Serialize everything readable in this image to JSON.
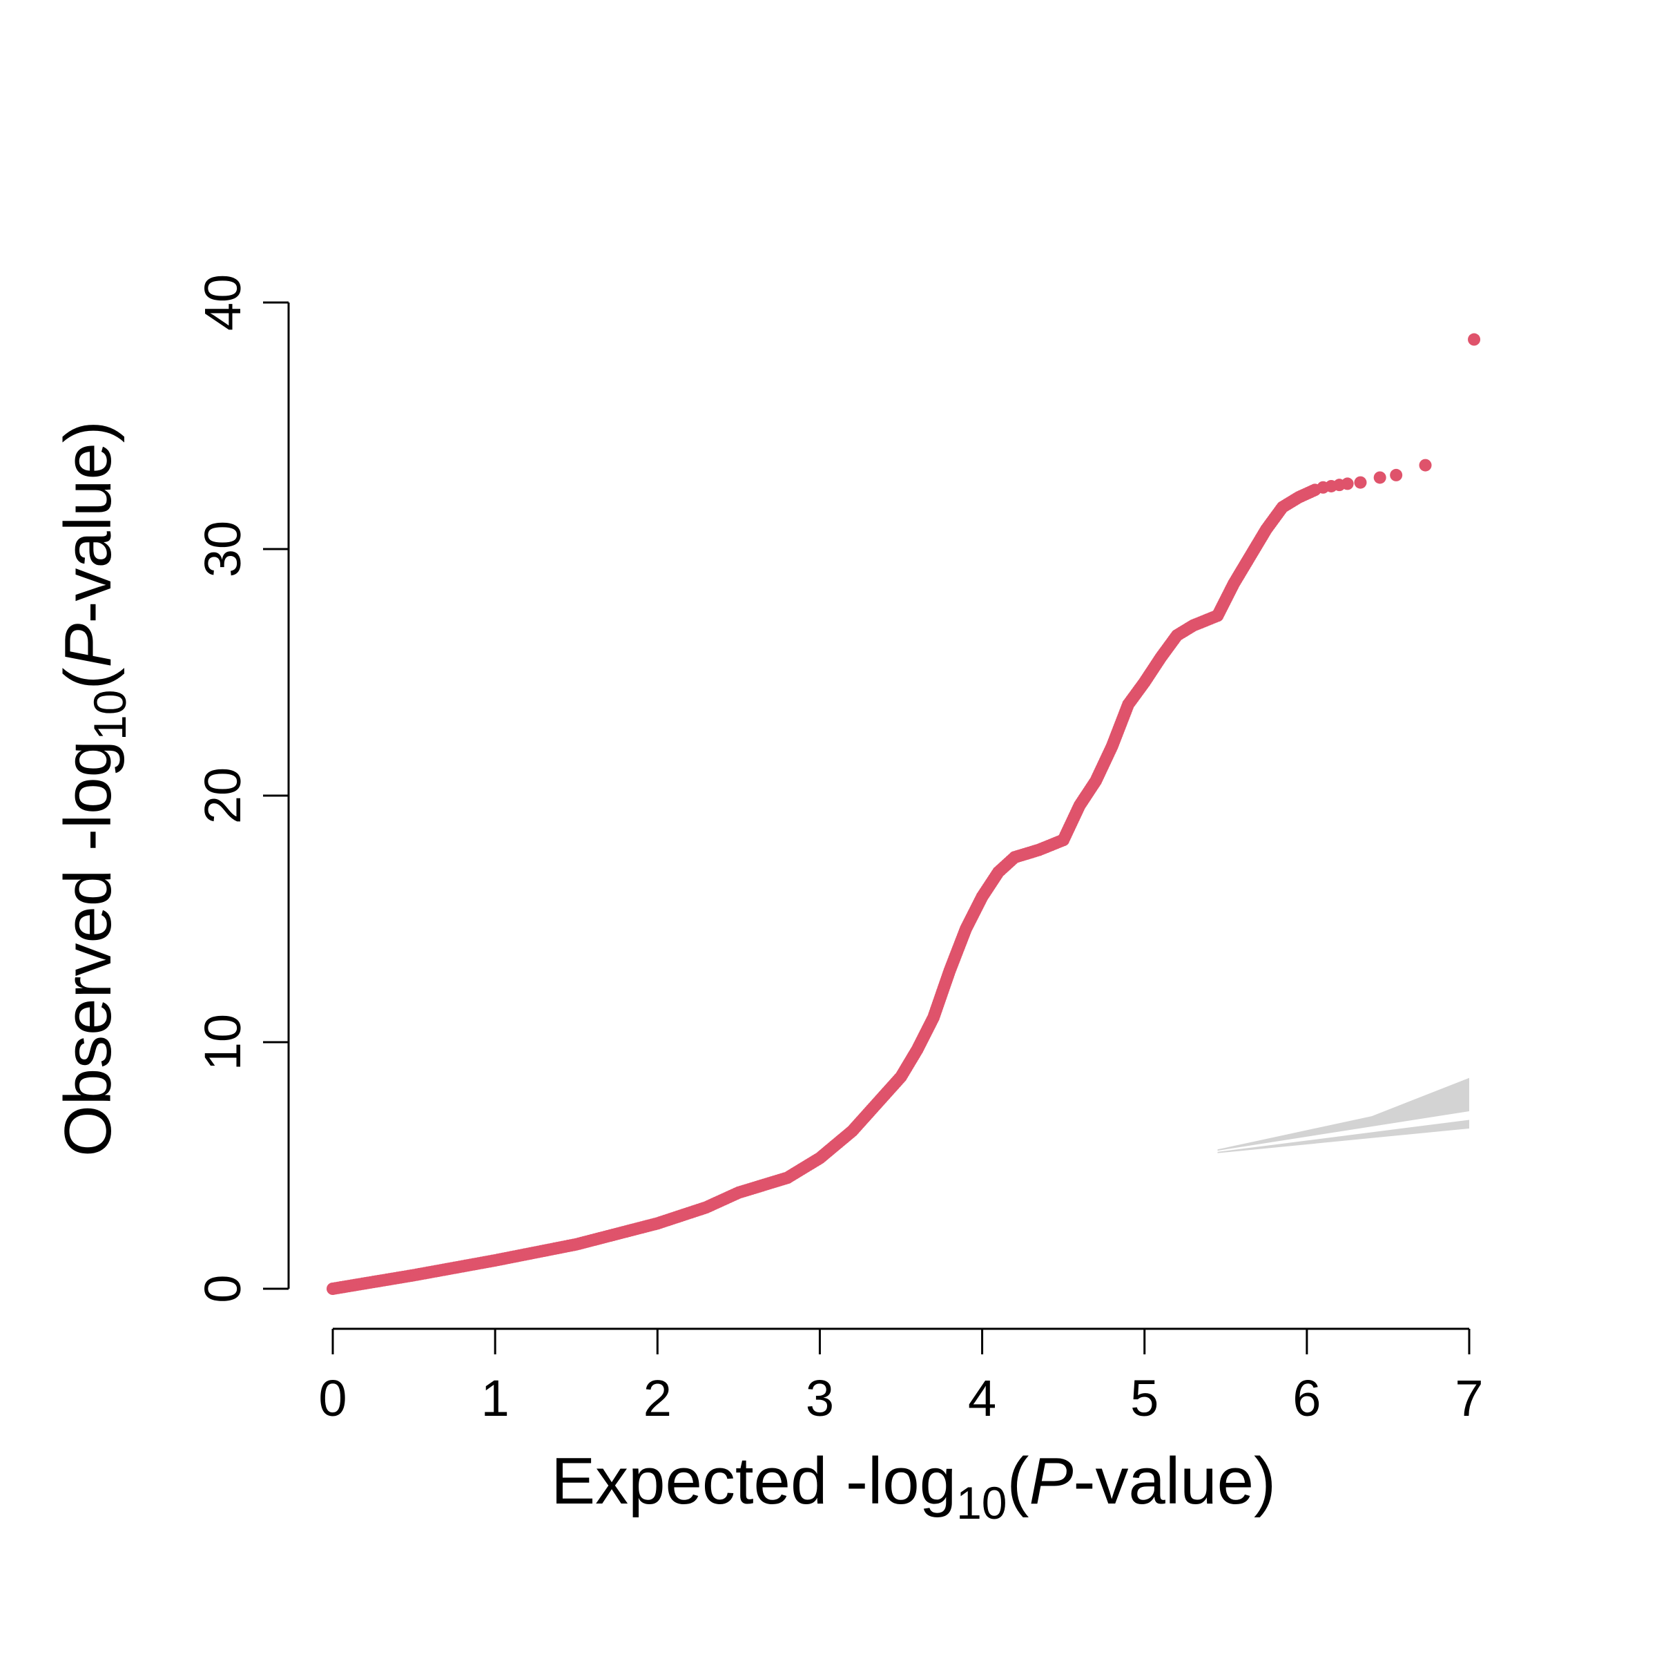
{
  "colors": {
    "points": "#DF536B",
    "band": "#D3D3D3",
    "axis": "#000000",
    "background": "#FFFFFF"
  },
  "chart_data": {
    "type": "scatter",
    "title": "",
    "xlabel": {
      "prefix": "Expected -log",
      "subscript": "10",
      "open": "(",
      "italic": "P",
      "suffix": "-value)"
    },
    "ylabel": {
      "prefix": "Observed -log",
      "subscript": "10",
      "open": "(",
      "italic": "P",
      "suffix": "-value)"
    },
    "xlim": [
      0,
      7
    ],
    "ylim": [
      0,
      40
    ],
    "x_ticks": [
      "0",
      "1",
      "2",
      "3",
      "4",
      "5",
      "6",
      "7"
    ],
    "y_ticks": [
      "0",
      "10",
      "20",
      "30",
      "40"
    ],
    "grid": false,
    "legend": "none",
    "series": [
      {
        "curve_points": [
          [
            0.0,
            0.0
          ],
          [
            0.5,
            0.55
          ],
          [
            1.0,
            1.15
          ],
          [
            1.5,
            1.8
          ],
          [
            2.0,
            2.65
          ],
          [
            2.3,
            3.3
          ],
          [
            2.5,
            3.9
          ],
          [
            2.8,
            4.5
          ],
          [
            3.0,
            5.3
          ],
          [
            3.2,
            6.4
          ],
          [
            3.35,
            7.5
          ],
          [
            3.5,
            8.6
          ],
          [
            3.6,
            9.7
          ],
          [
            3.7,
            11.0
          ],
          [
            3.8,
            12.9
          ],
          [
            3.9,
            14.6
          ],
          [
            4.0,
            15.9
          ],
          [
            4.1,
            16.9
          ],
          [
            4.2,
            17.5
          ],
          [
            4.35,
            17.8
          ],
          [
            4.5,
            18.2
          ],
          [
            4.6,
            19.6
          ],
          [
            4.7,
            20.6
          ],
          [
            4.8,
            22.0
          ],
          [
            4.9,
            23.7
          ],
          [
            5.0,
            24.6
          ],
          [
            5.1,
            25.6
          ],
          [
            5.2,
            26.5
          ],
          [
            5.3,
            26.9
          ],
          [
            5.45,
            27.3
          ],
          [
            5.55,
            28.6
          ],
          [
            5.65,
            29.7
          ],
          [
            5.75,
            30.8
          ],
          [
            5.85,
            31.7
          ],
          [
            5.95,
            32.1
          ],
          [
            6.05,
            32.4
          ]
        ],
        "tail_points": [
          [
            6.1,
            32.5
          ],
          [
            6.15,
            32.55
          ],
          [
            6.2,
            32.6
          ],
          [
            6.25,
            32.65
          ],
          [
            6.33,
            32.7
          ],
          [
            6.45,
            32.9
          ],
          [
            6.55,
            33.0
          ],
          [
            6.73,
            33.4
          ],
          [
            7.03,
            38.5
          ]
        ]
      }
    ],
    "ci_band": {
      "x_range": [
        5.45,
        7.0
      ],
      "upper_start": 5.65,
      "upper_end": 8.55,
      "upper_inner_start": 5.6,
      "upper_inner_end": 7.2,
      "lower_inner_start": 5.55,
      "lower_inner_end": 6.85,
      "lower_start": 5.5,
      "lower_end": 6.5
    }
  }
}
